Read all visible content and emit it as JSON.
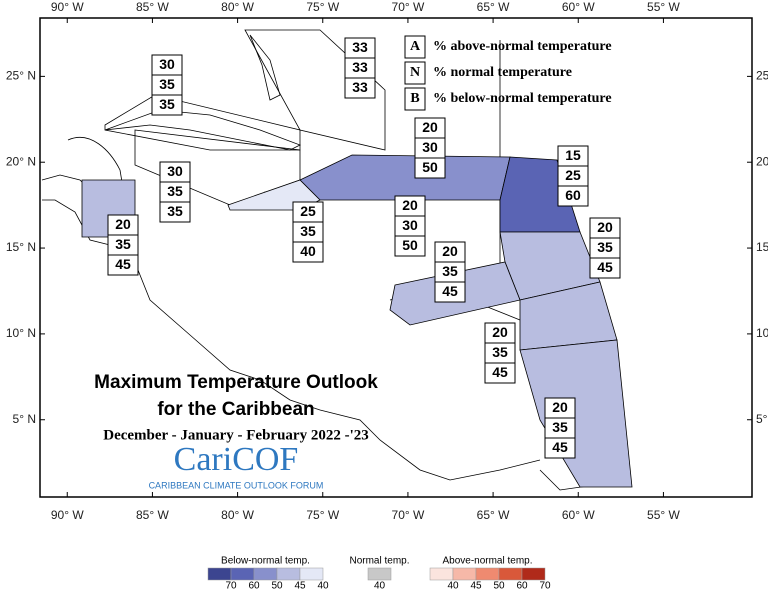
{
  "map": {
    "title": "Maximum Temperature Outlook",
    "title2": "for the Caribbean",
    "period": "December - January - February 2022 -'23",
    "logo": "CariCOF",
    "logo_sub": "CARIBBEAN CLIMATE OUTLOOK FORUM",
    "xlim": [
      -91.6,
      -49.8
    ],
    "ylim": [
      0.5,
      28.4
    ],
    "xticks": [
      {
        "value": -90,
        "label": "90° W"
      },
      {
        "value": -85,
        "label": "85° W"
      },
      {
        "value": -80,
        "label": "80° W"
      },
      {
        "value": -75,
        "label": "75° W"
      },
      {
        "value": -70,
        "label": "70° W"
      },
      {
        "value": -65,
        "label": "65° W"
      },
      {
        "value": -60,
        "label": "60° W"
      },
      {
        "value": -55,
        "label": "55° W"
      }
    ],
    "yticks": [
      {
        "value": 25,
        "label": "25° N"
      },
      {
        "value": 20,
        "label": "20° N"
      },
      {
        "value": 15,
        "label": "15° N"
      },
      {
        "value": 10,
        "label": "10° N"
      },
      {
        "value": 5,
        "label": "5° N"
      }
    ],
    "key": [
      {
        "letter": "A",
        "text": "% above-normal temperature"
      },
      {
        "letter": "N",
        "text": "% normal temperature"
      },
      {
        "letter": "B",
        "text": "% below-normal temperature"
      }
    ],
    "regions": [
      {
        "values": [
          30,
          35,
          35
        ]
      },
      {
        "values": [
          33,
          33,
          33
        ]
      },
      {
        "values": [
          20,
          30,
          50
        ]
      },
      {
        "values": [
          15,
          25,
          60
        ]
      },
      {
        "values": [
          30,
          35,
          35
        ]
      },
      {
        "values": [
          25,
          35,
          40
        ]
      },
      {
        "values": [
          20,
          30,
          50
        ]
      },
      {
        "values": [
          20,
          35,
          45
        ]
      },
      {
        "values": [
          20,
          35,
          45
        ]
      },
      {
        "values": [
          20,
          35,
          45
        ]
      },
      {
        "values": [
          20,
          35,
          45
        ]
      },
      {
        "values": [
          20,
          35,
          45
        ]
      }
    ],
    "legend": {
      "below": {
        "title": "Below-normal temp.",
        "levels": [
          70,
          60,
          50,
          45,
          40
        ],
        "colors": [
          "#3c4590",
          "#5a64b4",
          "#8890cc",
          "#b8bde0",
          "#e4e8f6"
        ]
      },
      "normal": {
        "title": "Normal temp.",
        "levels": [
          40
        ],
        "colors": [
          "#c8c8c8"
        ]
      },
      "above": {
        "title": "Above-normal temp.",
        "levels": [
          40,
          45,
          50,
          60,
          70
        ],
        "colors": [
          "#fbe4de",
          "#f6b8a8",
          "#ef8a70",
          "#d9583a",
          "#b02a1a"
        ]
      }
    }
  }
}
